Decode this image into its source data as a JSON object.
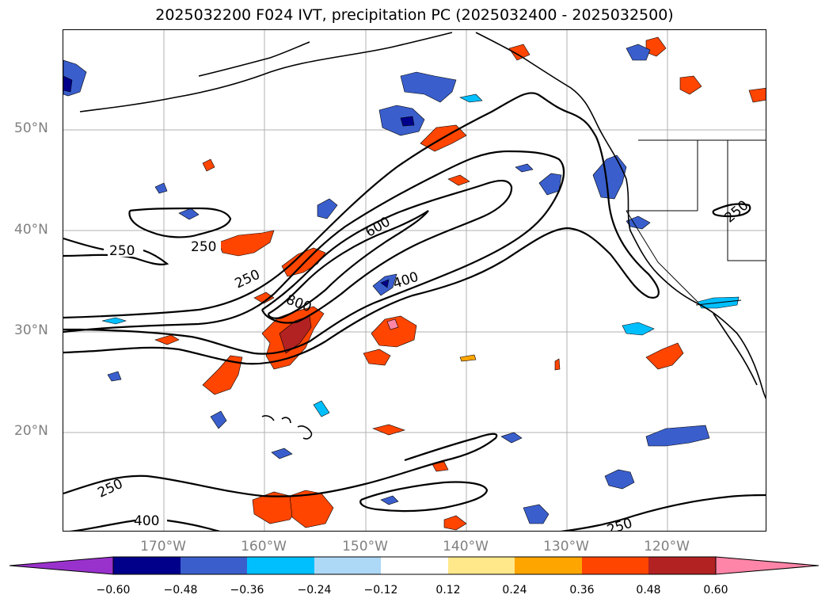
{
  "title": "2025032200 F024 IVT, precipitation PC (2025032400 - 2025032500)",
  "map": {
    "lat_labels": [
      "50°N",
      "40°N",
      "30°N",
      "20°N"
    ],
    "lon_labels": [
      "170°W",
      "160°W",
      "150°W",
      "140°W",
      "130°W",
      "120°W"
    ],
    "contour_labels": [
      "250",
      "250",
      "250",
      "600",
      "400",
      "800",
      "250",
      "400",
      "250",
      "250"
    ],
    "contour_color": "#000000",
    "grid_color": "#b0b0b0"
  },
  "colorbar": {
    "ticks": [
      "−0.60",
      "−0.48",
      "−0.36",
      "−0.24",
      "−0.12",
      "0.12",
      "0.24",
      "0.36",
      "0.48",
      "0.60"
    ],
    "colors": [
      "#9932CC",
      "#00008B",
      "#3A5FCD",
      "#00BFFF",
      "#ADD8F6",
      "#FFFFFF",
      "#FFE88A",
      "#FFA500",
      "#FF4500",
      "#B22222",
      "#FF85A8"
    ]
  }
}
